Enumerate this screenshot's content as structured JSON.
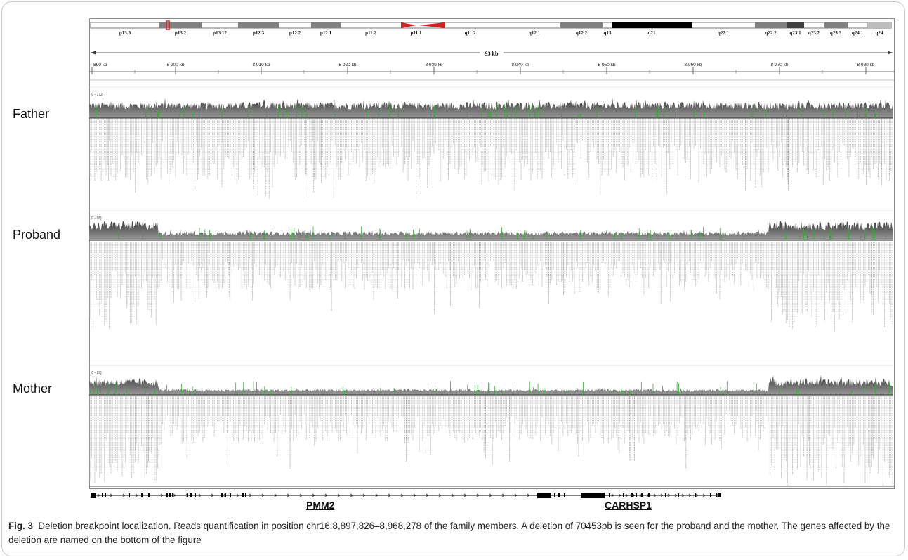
{
  "ideogram": {
    "bands": [
      "p13.3",
      "p13.2",
      "p13.12",
      "p12.3",
      "p12.2",
      "p12.1",
      "p11.2",
      "p11.1",
      "q11.2",
      "q12.1",
      "q12.2",
      "q13",
      "q21",
      "q22.1",
      "q22.2",
      "q23.1",
      "q23.2",
      "q23.3",
      "q24.1",
      "q24"
    ]
  },
  "ruler": {
    "span_label": "93 kb",
    "ticks": [
      "890 kb",
      "8 900 kb",
      "8 910 kb",
      "8 920 kb",
      "8 930 kb",
      "8 940 kb",
      "8 950 kb",
      "8 960 kb",
      "8 970 kb",
      "8 980 kb"
    ]
  },
  "samples": [
    {
      "name": "Father",
      "range_label": "[0 - 172]",
      "deleted": false
    },
    {
      "name": "Proband",
      "range_label": "[0 - 98]",
      "deleted": true
    },
    {
      "name": "Mother",
      "range_label": "[0 - 95]",
      "deleted": true
    }
  ],
  "genes": [
    {
      "name": "PMM2"
    },
    {
      "name": "CARHSP1"
    }
  ],
  "caption": {
    "prefix": "Fig. 3",
    "text": "Deletion breakpoint localization. Reads quantification in position chr16:8,897,826–8,968,278 of the family members. A deletion of 70453pb is seen for the proband and the mother. The genes affected by the deletion are named on the bottom of the figure"
  },
  "colors": {
    "coverage_dark": "#3a3a3a",
    "coverage_light": "#9a9a9a",
    "mismatch_green": "#33aa33",
    "reads": "#b8b8b8",
    "centromere": "#d11f1f",
    "highlight": "#e02020"
  }
}
